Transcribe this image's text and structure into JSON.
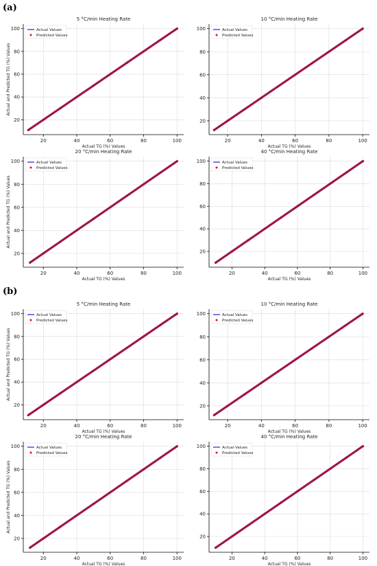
{
  "panel_labels": [
    "(a)",
    "(b)"
  ],
  "colors": {
    "actual": "#1f1fd0",
    "predicted": "#e01010",
    "overlap": "#a0104a",
    "grid": "#d9d9d9"
  },
  "chart_data": [
    {
      "panel": "(a)",
      "type": "line",
      "title": "5 °C/min Heating Rate",
      "xlabel": "Actual TG (%) Values",
      "ylabel": "Actual and Predicted TG (%) Values",
      "xlim": [
        8,
        104
      ],
      "ylim": [
        7,
        104
      ],
      "xticks": [
        20,
        40,
        60,
        80,
        100
      ],
      "yticks": [
        20,
        40,
        60,
        80,
        100
      ],
      "legend": "top-left",
      "grid": true,
      "series": [
        {
          "name": "Actual Values",
          "style": "line",
          "x": [
            11,
            100
          ],
          "y": [
            11,
            100
          ]
        },
        {
          "name": "Predicted Values",
          "style": "points",
          "x": [
            11,
            20,
            30,
            40,
            50,
            60,
            70,
            80,
            90,
            100
          ],
          "y": [
            11,
            20,
            30,
            40,
            50,
            60,
            70,
            80,
            90,
            100
          ]
        }
      ]
    },
    {
      "panel": "(a)",
      "type": "line",
      "title": "10 °C/min Heating Rate",
      "xlabel": "Actual TG (%) Values",
      "ylabel": "",
      "xlim": [
        9,
        104
      ],
      "ylim": [
        8,
        104
      ],
      "xticks": [
        20,
        40,
        60,
        80,
        100
      ],
      "yticks": [
        20,
        40,
        60,
        80,
        100
      ],
      "legend": "top-left",
      "grid": true,
      "series": [
        {
          "name": "Actual Values",
          "style": "line",
          "x": [
            12,
            100
          ],
          "y": [
            12,
            100
          ]
        },
        {
          "name": "Predicted Values",
          "style": "points",
          "x": [
            12,
            20,
            30,
            40,
            50,
            60,
            70,
            80,
            90,
            100
          ],
          "y": [
            12,
            20,
            30,
            40,
            50,
            60,
            70,
            80,
            90,
            100
          ]
        }
      ]
    },
    {
      "panel": "(a)",
      "type": "line",
      "title": "20 °C/min Heating Rate",
      "xlabel": "Actual TG (%) Values",
      "ylabel": "Actual and Predicted TG (%) Values",
      "xlim": [
        8,
        104
      ],
      "ylim": [
        8,
        104
      ],
      "xticks": [
        20,
        40,
        60,
        80,
        100
      ],
      "yticks": [
        20,
        40,
        60,
        80,
        100
      ],
      "legend": "top-left",
      "grid": true,
      "series": [
        {
          "name": "Actual Values",
          "style": "line",
          "x": [
            12,
            100
          ],
          "y": [
            12,
            100
          ]
        },
        {
          "name": "Predicted Values",
          "style": "points",
          "x": [
            12,
            20,
            30,
            40,
            50,
            60,
            70,
            80,
            90,
            100
          ],
          "y": [
            12,
            20,
            30,
            40,
            50,
            60,
            70,
            80,
            90,
            100
          ]
        }
      ]
    },
    {
      "panel": "(a)",
      "type": "line",
      "title": "40 °C/min Heating Rate",
      "xlabel": "Actual TG (%) Values",
      "ylabel": "",
      "xlim": [
        6,
        104
      ],
      "ylim": [
        6,
        104
      ],
      "xticks": [
        20,
        40,
        60,
        80,
        100
      ],
      "yticks": [
        20,
        40,
        60,
        80,
        100
      ],
      "legend": "top-left",
      "grid": true,
      "series": [
        {
          "name": "Actual Values",
          "style": "line",
          "x": [
            10,
            100
          ],
          "y": [
            10,
            100
          ]
        },
        {
          "name": "Predicted Values",
          "style": "points",
          "x": [
            10,
            20,
            30,
            40,
            50,
            60,
            70,
            80,
            90,
            100
          ],
          "y": [
            10,
            20,
            30,
            40,
            50,
            60,
            70,
            80,
            90,
            100
          ]
        }
      ]
    },
    {
      "panel": "(b)",
      "type": "line",
      "title": "5 °C/min Heating Rate",
      "xlabel": "Actual TG (%) Values",
      "ylabel": "Actual and Predicted TG (%) Values",
      "xlim": [
        8,
        104
      ],
      "ylim": [
        7,
        104
      ],
      "xticks": [
        20,
        40,
        60,
        80,
        100
      ],
      "yticks": [
        20,
        40,
        60,
        80,
        100
      ],
      "legend": "top-left",
      "grid": true,
      "series": [
        {
          "name": "Actual Values",
          "style": "line",
          "x": [
            11,
            100
          ],
          "y": [
            11,
            100
          ]
        },
        {
          "name": "Predicted Values",
          "style": "points",
          "x": [
            11,
            20,
            30,
            40,
            50,
            60,
            70,
            80,
            90,
            100
          ],
          "y": [
            11,
            20,
            30,
            40,
            50,
            60,
            70,
            80,
            90,
            100
          ]
        }
      ]
    },
    {
      "panel": "(b)",
      "type": "line",
      "title": "10 °C/min Heating Rate",
      "xlabel": "Actual TG (%) Values",
      "ylabel": "",
      "xlim": [
        9,
        104
      ],
      "ylim": [
        8,
        104
      ],
      "xticks": [
        20,
        40,
        60,
        80,
        100
      ],
      "yticks": [
        20,
        40,
        60,
        80,
        100
      ],
      "legend": "top-left",
      "grid": true,
      "series": [
        {
          "name": "Actual Values",
          "style": "line",
          "x": [
            12,
            100
          ],
          "y": [
            12,
            100
          ]
        },
        {
          "name": "Predicted Values",
          "style": "points",
          "x": [
            12,
            20,
            30,
            40,
            50,
            60,
            70,
            80,
            90,
            100
          ],
          "y": [
            12,
            20,
            30,
            40,
            50,
            60,
            70,
            80,
            90,
            100
          ]
        }
      ]
    },
    {
      "panel": "(b)",
      "type": "line",
      "title": "20 °C/min Heating Rate",
      "xlabel": "Actual TG (%) Values",
      "ylabel": "Actual and Predicted TG (%) Values",
      "xlim": [
        8,
        104
      ],
      "ylim": [
        8,
        104
      ],
      "xticks": [
        20,
        40,
        60,
        80,
        100
      ],
      "yticks": [
        20,
        40,
        60,
        80,
        100
      ],
      "legend": "top-left",
      "grid": true,
      "series": [
        {
          "name": "Actual Values",
          "style": "line",
          "x": [
            12,
            100
          ],
          "y": [
            12,
            100
          ]
        },
        {
          "name": "Predicted Values",
          "style": "points",
          "x": [
            12,
            20,
            30,
            40,
            50,
            60,
            70,
            80,
            90,
            100
          ],
          "y": [
            12,
            20,
            30,
            40,
            50,
            60,
            70,
            80,
            90,
            100
          ]
        }
      ]
    },
    {
      "panel": "(b)",
      "type": "line",
      "title": "40 °C/min Heating Rate",
      "xlabel": "Actual TG (%) Values",
      "ylabel": "",
      "xlim": [
        6,
        104
      ],
      "ylim": [
        6,
        104
      ],
      "xticks": [
        20,
        40,
        60,
        80,
        100
      ],
      "yticks": [
        20,
        40,
        60,
        80,
        100
      ],
      "legend": "top-left",
      "grid": true,
      "series": [
        {
          "name": "Actual Values",
          "style": "line",
          "x": [
            10,
            100
          ],
          "y": [
            10,
            100
          ]
        },
        {
          "name": "Predicted Values",
          "style": "points",
          "x": [
            10,
            20,
            30,
            40,
            50,
            60,
            70,
            80,
            90,
            100
          ],
          "y": [
            10,
            20,
            30,
            40,
            50,
            60,
            70,
            80,
            90,
            100
          ]
        }
      ]
    }
  ]
}
